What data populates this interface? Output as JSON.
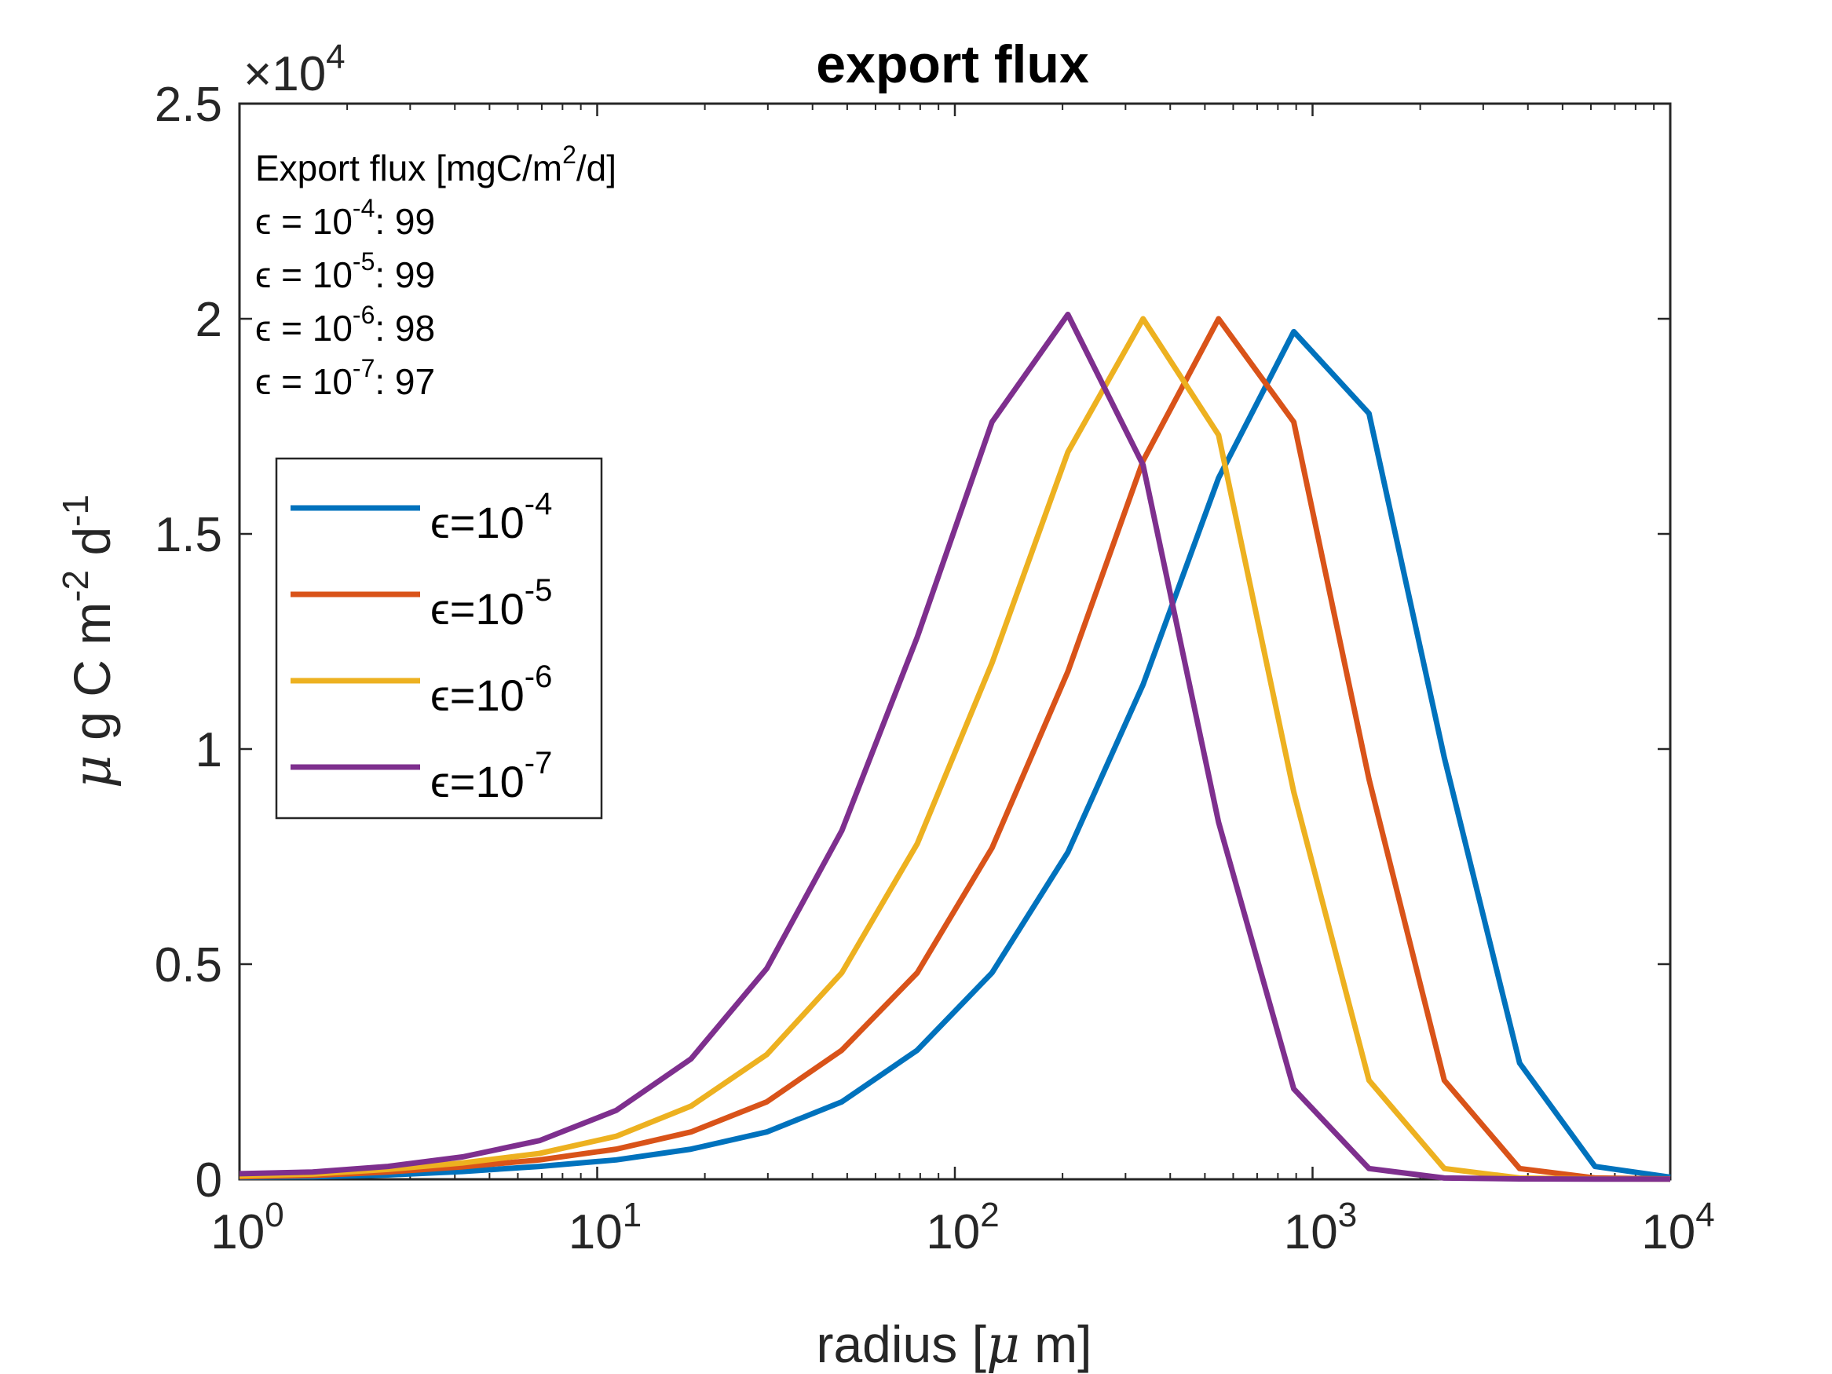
{
  "chart_data": {
    "type": "line",
    "title": "export flux",
    "xlabel": "radius [μ m]",
    "ylabel": "μ g C m^-2 d^-1",
    "xscale": "log",
    "xlim": [
      1,
      10000
    ],
    "ylim": [
      0,
      25000
    ],
    "y_exponent_label": "×10^4",
    "x_ticks": [
      {
        "value": 1,
        "base": "10",
        "exp": "0"
      },
      {
        "value": 10,
        "base": "10",
        "exp": "1"
      },
      {
        "value": 100,
        "base": "10",
        "exp": "2"
      },
      {
        "value": 1000,
        "base": "10",
        "exp": "3"
      },
      {
        "value": 10000,
        "base": "10",
        "exp": "4"
      }
    ],
    "y_ticks": [
      {
        "value": 0,
        "label": "0"
      },
      {
        "value": 5000,
        "label": "0.5"
      },
      {
        "value": 10000,
        "label": "1"
      },
      {
        "value": 15000,
        "label": "1.5"
      },
      {
        "value": 20000,
        "label": "2"
      },
      {
        "value": 25000,
        "label": "2.5"
      }
    ],
    "grid": false,
    "legend_position": "left",
    "x": [
      1,
      1.6,
      2.6,
      4.2,
      6.9,
      11.3,
      18.3,
      29.8,
      48.3,
      78.5,
      127,
      207,
      336,
      546,
      886,
      1438,
      2336,
      3793,
      6158,
      10000
    ],
    "series": [
      {
        "name": "ϵ=10^-4",
        "color": "#0072BD",
        "values": [
          50,
          60,
          100,
          180,
          300,
          450,
          700,
          1100,
          1800,
          3000,
          4800,
          7600,
          11500,
          16300,
          19700,
          17800,
          9800,
          2700,
          300,
          50
        ]
      },
      {
        "name": "ϵ=10^-5",
        "color": "#D95319",
        "values": [
          60,
          90,
          170,
          290,
          450,
          700,
          1100,
          1800,
          3000,
          4800,
          7700,
          11800,
          16700,
          20000,
          17600,
          9300,
          2300,
          250,
          30,
          10
        ]
      },
      {
        "name": "ϵ=10^-6",
        "color": "#EDB120",
        "values": [
          80,
          120,
          230,
          380,
          600,
          1000,
          1700,
          2900,
          4800,
          7800,
          12000,
          16900,
          20000,
          17300,
          9000,
          2300,
          250,
          30,
          10,
          5
        ]
      },
      {
        "name": "ϵ=10^-7",
        "color": "#7E2F8E",
        "values": [
          130,
          170,
          300,
          520,
          900,
          1600,
          2800,
          4900,
          8100,
          12600,
          17600,
          20100,
          16600,
          8300,
          2100,
          250,
          30,
          10,
          5,
          5
        ]
      }
    ],
    "annotation": {
      "heading_prefix": "Export flux [mgC/m",
      "heading_sup": "2",
      "heading_suffix": "/d]",
      "rows": [
        {
          "prefix": "ϵ = 10",
          "exp": "-4",
          "value": ": 99"
        },
        {
          "prefix": "ϵ = 10",
          "exp": "-5",
          "value": ": 99"
        },
        {
          "prefix": "ϵ = 10",
          "exp": "-6",
          "value": ": 98"
        },
        {
          "prefix": "ϵ = 10",
          "exp": "-7",
          "value": ": 97"
        }
      ]
    },
    "legend": [
      {
        "prefix": "ϵ=10",
        "exp": "-4"
      },
      {
        "prefix": "ϵ=10",
        "exp": "-5"
      },
      {
        "prefix": "ϵ=10",
        "exp": "-6"
      },
      {
        "prefix": "ϵ=10",
        "exp": "-7"
      }
    ]
  }
}
